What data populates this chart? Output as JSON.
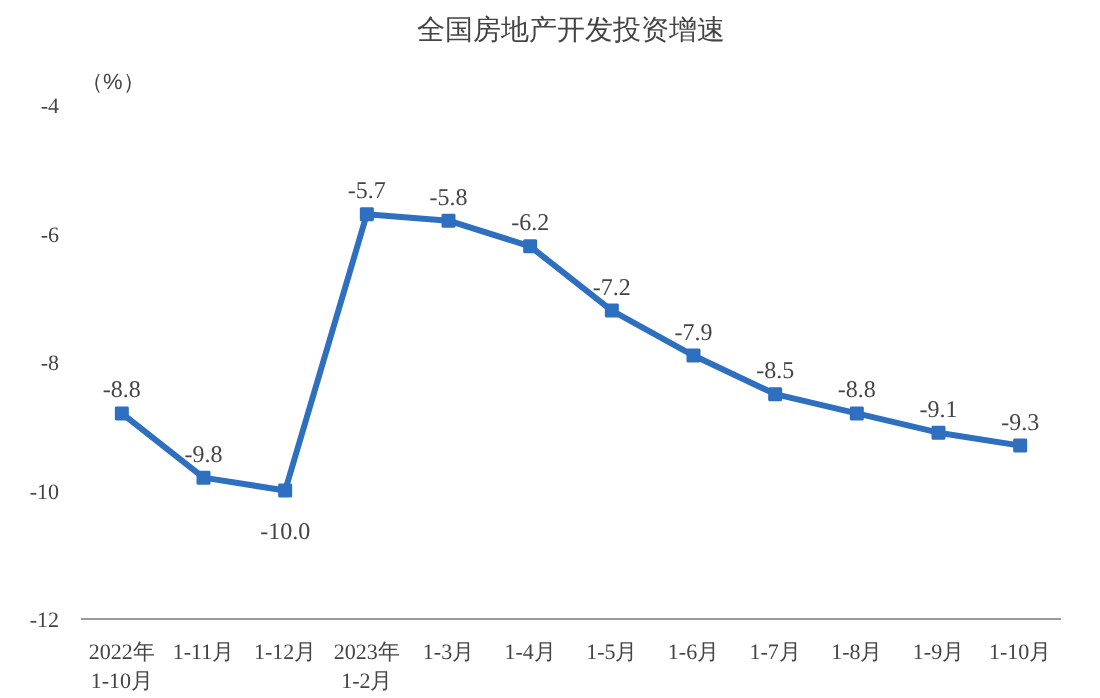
{
  "chart_data": {
    "type": "line",
    "title": "全国房地产开发投资增速",
    "ylabel": "（%）",
    "categories": [
      "2022年\n1-10月",
      "1-11月",
      "1-12月",
      "2023年\n1-2月",
      "1-3月",
      "1-4月",
      "1-5月",
      "1-6月",
      "1-7月",
      "1-8月",
      "1-9月",
      "1-10月"
    ],
    "series": [
      {
        "color": "#2e6fc0",
        "values": [
          -8.8,
          -9.8,
          -10.0,
          -5.7,
          -5.8,
          -6.2,
          -7.2,
          -7.9,
          -8.5,
          -8.8,
          -9.1,
          -9.3
        ],
        "value_labels": [
          "-8.8",
          "-9.8",
          "-10.0",
          "-5.7",
          "-5.8",
          "-6.2",
          "-7.2",
          "-7.9",
          "-8.5",
          "-8.8",
          "-9.1",
          "-9.3"
        ]
      }
    ],
    "ylim": [
      -12,
      -4
    ],
    "yticks": [
      -12,
      -10,
      -8,
      -6,
      -4
    ],
    "marker": "square",
    "line_style": "solid",
    "grid": false
  }
}
